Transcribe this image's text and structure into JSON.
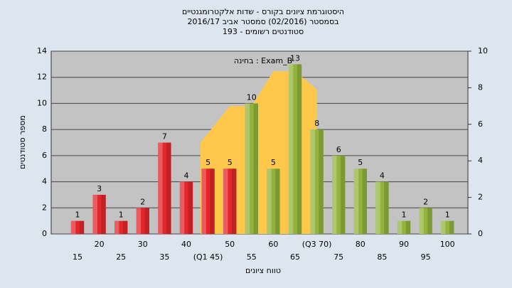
{
  "chart_data": {
    "type": "bar",
    "title": [
      "היסטוגרמת ציונים בקורס - שדות אלקטרומגנטיים",
      "בסמסטר  (02/2016)  סמסטר אביב 2016/17",
      "סטודנטים רשומים - 193"
    ],
    "annotation": "בחינה : Exam_B",
    "x_label": "טווח ציונים",
    "y_label": "מספר סטודנטים",
    "categories": [
      "15",
      "20",
      "25",
      "30",
      "35",
      "40",
      "(Q1 45)",
      "50",
      "55",
      "60",
      "65",
      "(Q3 70)",
      "75",
      "80",
      "85",
      "90",
      "95",
      "100"
    ],
    "series": [
      {
        "values": [
          1,
          3,
          1,
          2,
          7,
          4,
          5,
          5,
          10,
          5,
          13,
          8,
          6,
          5,
          4,
          1,
          2,
          1
        ],
        "colors": [
          "#e3262b",
          "#e3262b",
          "#e3262b",
          "#e3262b",
          "#e3262b",
          "#e3262b",
          "#e3262b",
          "#e3262b",
          "#93b43c",
          "#93b43c",
          "#93b43c",
          "#93b43c",
          "#93b43c",
          "#93b43c",
          "#93b43c",
          "#93b43c",
          "#93b43c",
          "#93b43c"
        ]
      },
      {
        "type": "area",
        "axis": "y2",
        "color": "#ffc84a",
        "values": [
          null,
          null,
          null,
          null,
          null,
          null,
          5,
          7,
          7,
          8.9,
          8.9,
          7.9,
          null,
          null,
          null,
          null,
          null,
          null
        ]
      }
    ],
    "ylim": [
      0,
      14
    ],
    "yticks": [
      0,
      2,
      4,
      6,
      8,
      10,
      12,
      14
    ],
    "y2lim": [
      0,
      10
    ],
    "y2ticks": [
      0,
      2,
      4,
      6,
      8,
      10
    ],
    "grid": true
  }
}
